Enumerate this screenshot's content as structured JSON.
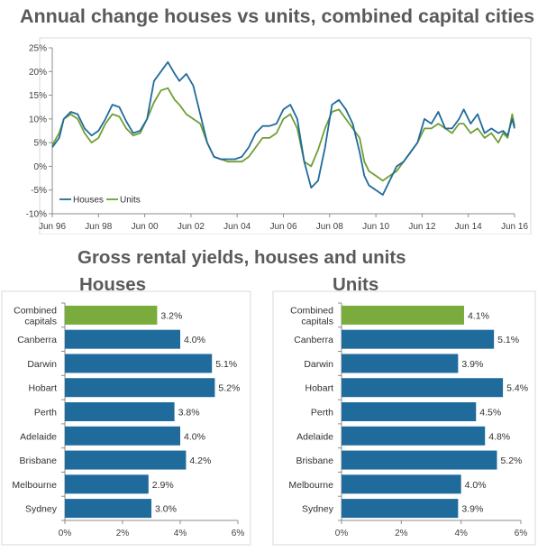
{
  "titles": {
    "main": "Annual change houses vs units, combined capital cities",
    "sub": "Gross rental yields, houses and units",
    "houses": "Houses",
    "units": "Units"
  },
  "colors": {
    "houses": "#1f6b9c",
    "units": "#6f9e33",
    "combined": "#7aac3d",
    "bar": "#1f6b9c"
  },
  "chart_data": [
    {
      "type": "line",
      "title": "Annual change houses vs units, combined capital cities",
      "x_ticks": [
        "Jun 96",
        "Jun 98",
        "Jun 00",
        "Jun 02",
        "Jun 04",
        "Jun 06",
        "Jun 08",
        "Jun 10",
        "Jun 12",
        "Jun 14",
        "Jun 16"
      ],
      "xlim": [
        1996.5,
        2016.5
      ],
      "y_ticks": [
        "25%",
        "20%",
        "15%",
        "10%",
        "5%",
        "0%",
        "-5%",
        "-10%"
      ],
      "ylim": [
        -10,
        25
      ],
      "legend": "bottom-left",
      "grid": false,
      "series": [
        {
          "name": "Houses",
          "x": [
            1996.5,
            1996.8,
            1997.0,
            1997.3,
            1997.6,
            1997.9,
            1998.2,
            1998.5,
            1998.8,
            1999.1,
            1999.4,
            1999.7,
            2000.0,
            2000.3,
            2000.6,
            2000.9,
            2001.2,
            2001.5,
            2001.8,
            2002.0,
            2002.3,
            2002.6,
            2002.9,
            2003.2,
            2003.5,
            2003.8,
            2004.1,
            2004.4,
            2004.7,
            2005.0,
            2005.3,
            2005.6,
            2005.9,
            2006.2,
            2006.5,
            2006.8,
            2007.1,
            2007.4,
            2007.7,
            2008.0,
            2008.3,
            2008.6,
            2008.9,
            2009.2,
            2009.5,
            2009.8,
            2010.0,
            2010.2,
            2010.5,
            2010.8,
            2011.1,
            2011.4,
            2011.7,
            2012.0,
            2012.3,
            2012.6,
            2012.9,
            2013.2,
            2013.5,
            2013.8,
            2014.1,
            2014.3,
            2014.6,
            2014.9,
            2015.2,
            2015.5,
            2015.8,
            2016.0,
            2016.2,
            2016.4,
            2016.5
          ],
          "values": [
            4,
            6,
            10,
            11.5,
            11,
            8,
            6.5,
            7.5,
            10,
            13,
            12.5,
            9.5,
            7,
            7.5,
            10,
            18,
            20,
            22,
            19.5,
            18,
            19.5,
            17,
            11,
            5,
            2,
            1.5,
            1.5,
            1.5,
            2,
            4,
            7,
            8.5,
            8.5,
            9,
            12,
            13,
            10,
            1,
            -4.5,
            -3,
            4,
            13,
            14,
            12,
            9,
            3,
            -2,
            -4,
            -5,
            -6,
            -3,
            0,
            1,
            3,
            5,
            10,
            9,
            11.5,
            8,
            8,
            10,
            12,
            9,
            11,
            7,
            8,
            7,
            7.5,
            6.5,
            10,
            8
          ]
        },
        {
          "name": "Units",
          "x": [
            1996.5,
            1996.8,
            1997.0,
            1997.3,
            1997.6,
            1997.9,
            1998.2,
            1998.5,
            1998.8,
            1999.1,
            1999.4,
            1999.7,
            2000.0,
            2000.3,
            2000.6,
            2000.9,
            2001.2,
            2001.5,
            2001.8,
            2002.0,
            2002.3,
            2002.6,
            2002.9,
            2003.2,
            2003.5,
            2003.8,
            2004.1,
            2004.4,
            2004.7,
            2005.0,
            2005.3,
            2005.6,
            2005.9,
            2006.2,
            2006.5,
            2006.8,
            2007.1,
            2007.4,
            2007.7,
            2008.0,
            2008.3,
            2008.6,
            2008.9,
            2009.2,
            2009.5,
            2009.8,
            2010.0,
            2010.2,
            2010.5,
            2010.8,
            2011.1,
            2011.4,
            2011.7,
            2012.0,
            2012.3,
            2012.6,
            2012.9,
            2013.2,
            2013.5,
            2013.8,
            2014.1,
            2014.3,
            2014.6,
            2014.9,
            2015.2,
            2015.5,
            2015.8,
            2016.0,
            2016.2,
            2016.4,
            2016.5
          ],
          "values": [
            4.5,
            7,
            10,
            11,
            10,
            7,
            5,
            6,
            9,
            11,
            10.5,
            8,
            6.5,
            7,
            10,
            13.5,
            16,
            16.5,
            14,
            13,
            11,
            10,
            9,
            5,
            2,
            1.5,
            1,
            1,
            1,
            2,
            4,
            6,
            6,
            7,
            10,
            11,
            8,
            1,
            0,
            3.5,
            8,
            11.5,
            12,
            10,
            8,
            6,
            1,
            -1,
            -2,
            -3,
            -2,
            -1,
            1,
            3,
            5,
            8,
            8,
            9,
            8,
            7,
            9,
            9,
            7,
            8,
            6,
            7,
            5,
            7,
            6,
            11,
            8.5
          ]
        }
      ]
    },
    {
      "type": "bar",
      "title": "Houses",
      "categories": [
        "Combined capitals",
        "Canberra",
        "Darwin",
        "Hobart",
        "Perth",
        "Adelaide",
        "Brisbane",
        "Melbourne",
        "Sydney"
      ],
      "category_lines": [
        [
          "Combined",
          "capitals"
        ],
        [
          "Canberra"
        ],
        [
          "Darwin"
        ],
        [
          "Hobart"
        ],
        [
          "Perth"
        ],
        [
          "Adelaide"
        ],
        [
          "Brisbane"
        ],
        [
          "Melbourne"
        ],
        [
          "Sydney"
        ]
      ],
      "values": [
        3.2,
        4.0,
        5.1,
        5.2,
        3.8,
        4.0,
        4.2,
        2.9,
        3.0
      ],
      "labels": [
        "3.2%",
        "4.0%",
        "5.1%",
        "5.2%",
        "3.8%",
        "4.0%",
        "4.2%",
        "2.9%",
        "3.0%"
      ],
      "x_ticks": [
        "0%",
        "2%",
        "4%",
        "6%"
      ],
      "xlim": [
        0,
        6
      ]
    },
    {
      "type": "bar",
      "title": "Units",
      "categories": [
        "Combined capitals",
        "Canberra",
        "Darwin",
        "Hobart",
        "Perth",
        "Adelaide",
        "Brisbane",
        "Melbourne",
        "Sydney"
      ],
      "category_lines": [
        [
          "Combined",
          "capitals"
        ],
        [
          "Canberra"
        ],
        [
          "Darwin"
        ],
        [
          "Hobart"
        ],
        [
          "Perth"
        ],
        [
          "Adelaide"
        ],
        [
          "Brisbane"
        ],
        [
          "Melbourne"
        ],
        [
          "Sydney"
        ]
      ],
      "values": [
        4.1,
        5.1,
        3.9,
        5.4,
        4.5,
        4.8,
        5.2,
        4.0,
        3.9
      ],
      "labels": [
        "4.1%",
        "5.1%",
        "3.9%",
        "5.4%",
        "4.5%",
        "4.8%",
        "5.2%",
        "4.0%",
        "3.9%"
      ],
      "x_ticks": [
        "0%",
        "2%",
        "4%",
        "6%"
      ],
      "xlim": [
        0,
        6
      ]
    }
  ]
}
